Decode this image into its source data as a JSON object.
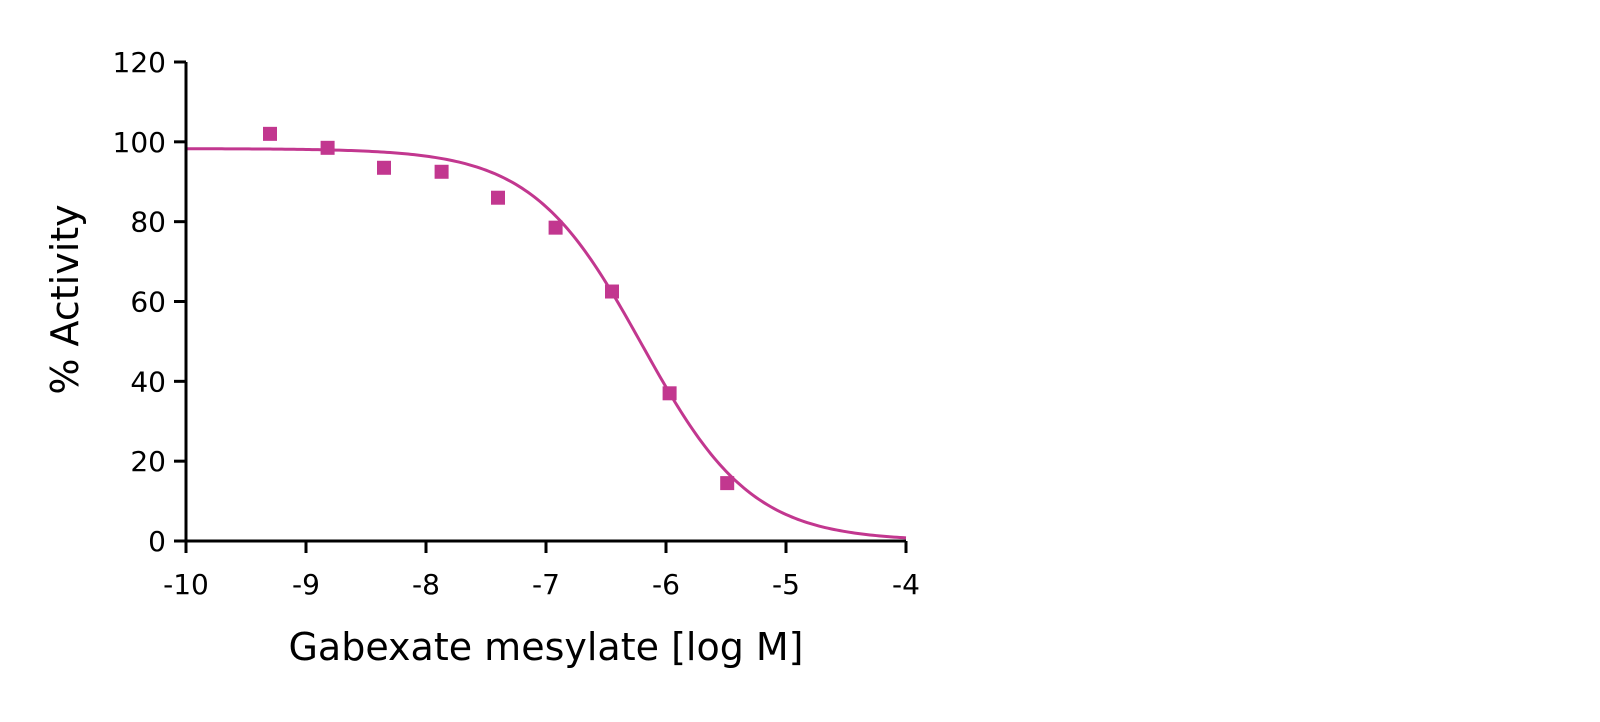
{
  "chart_data": {
    "type": "scatter",
    "xlabel": "Gabexate mesylate [log M]",
    "ylabel": "% Activity",
    "xlim": [
      -10,
      -4
    ],
    "ylim": [
      0,
      120
    ],
    "x_ticks": [
      -10,
      -9,
      -8,
      -7,
      -6,
      -5,
      -4
    ],
    "y_ticks": [
      0,
      20,
      40,
      60,
      80,
      100,
      120
    ],
    "grid": false,
    "series": [
      {
        "kind": "points",
        "marker": "square",
        "color": "#c2378f",
        "points": [
          {
            "x": -9.3,
            "y": 102
          },
          {
            "x": -8.82,
            "y": 98.5
          },
          {
            "x": -8.35,
            "y": 93.5
          },
          {
            "x": -7.87,
            "y": 92.5
          },
          {
            "x": -7.4,
            "y": 86
          },
          {
            "x": -6.92,
            "y": 78.5
          },
          {
            "x": -6.45,
            "y": 62.5
          },
          {
            "x": -5.97,
            "y": 37
          },
          {
            "x": -5.49,
            "y": 14.5
          }
        ]
      },
      {
        "kind": "fit_curve",
        "model": "four-parameter logistic",
        "color": "#c2378f",
        "top": 98.3,
        "bottom": 0,
        "log_ic50": -6.2,
        "hill_slope": -0.95
      }
    ]
  }
}
